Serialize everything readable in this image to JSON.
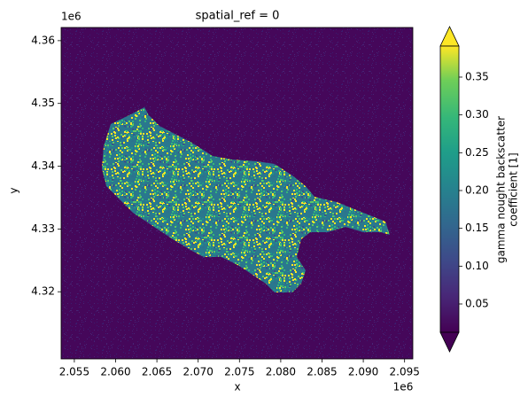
{
  "chart_data": {
    "type": "raster",
    "title": "spatial_ref = 0",
    "xlabel": "x",
    "ylabel": "y",
    "x_offset_label": "1e6",
    "y_offset_label": "1e6",
    "xlim": [
      2.0534,
      2.096
    ],
    "ylim": [
      4.3093,
      4.3621
    ],
    "xticks": [
      2.055,
      {
        "value": 2.06,
        "label": "2.060"
      },
      2.065,
      {
        "value": 2.07,
        "label": "2.070"
      },
      2.075,
      {
        "value": 2.08,
        "label": "2.080"
      },
      2.085,
      {
        "value": 2.09,
        "label": "2.090"
      },
      2.095
    ],
    "yticks": [
      4.32,
      4.33,
      4.34,
      4.35,
      4.36
    ],
    "colormap": "viridis",
    "clim": [
      0.0125,
      0.391
    ],
    "cticks": [
      0.05,
      {
        "value": 0.1,
        "label": "0.10"
      },
      0.15,
      {
        "value": 0.2,
        "label": "0.20"
      },
      0.25,
      {
        "value": 0.3,
        "label": "0.30"
      },
      0.35
    ],
    "colorbar_label": [
      "gamma nought backscatter",
      "coefficient [1]"
    ]
  }
}
